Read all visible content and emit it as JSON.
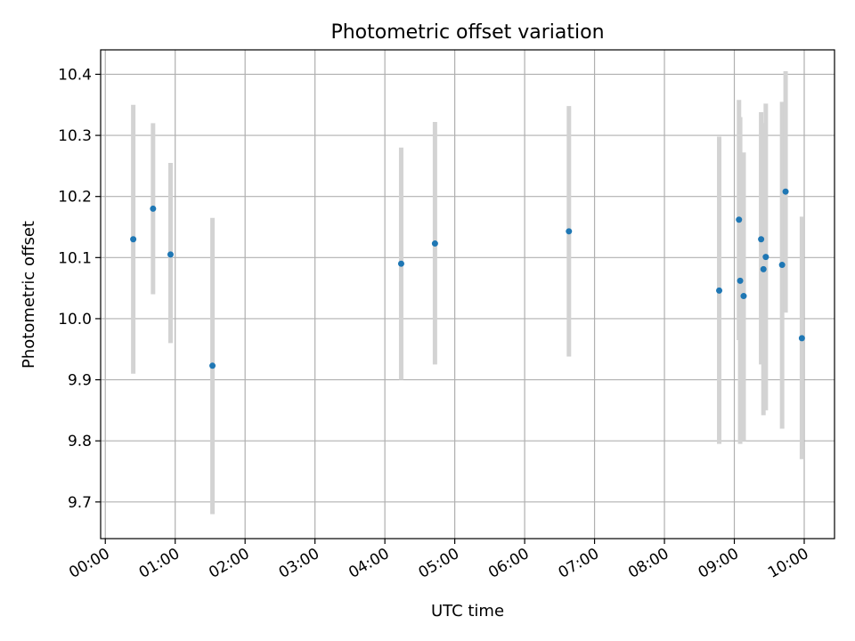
{
  "chart_data": {
    "type": "scatter",
    "title": "Photometric offset variation",
    "xlabel": "UTC time",
    "ylabel": "Photometric offset",
    "x_unit": "UTC",
    "xlim": [
      "23:56",
      "10:26"
    ],
    "ylim": [
      9.64,
      10.44
    ],
    "x_ticks": [
      "00:00",
      "01:00",
      "02:00",
      "03:00",
      "04:00",
      "05:00",
      "06:00",
      "07:00",
      "08:00",
      "09:00",
      "10:00"
    ],
    "y_ticks": [
      9.7,
      9.8,
      9.9,
      10.0,
      10.1,
      10.2,
      10.3,
      10.4
    ],
    "y_tick_labels": [
      "9.7",
      "9.8",
      "9.9",
      "10.0",
      "10.1",
      "10.2",
      "10.3",
      "10.4"
    ],
    "grid": true,
    "colors": {
      "point": "#1f77b4",
      "errorbar": "#d3d3d3",
      "grid": "#b0b0b0"
    },
    "points": [
      {
        "x": "00:24",
        "y": 10.13,
        "y_low": 9.91,
        "y_high": 10.35
      },
      {
        "x": "00:41",
        "y": 10.18,
        "y_low": 10.04,
        "y_high": 10.32
      },
      {
        "x": "00:56",
        "y": 10.105,
        "y_low": 9.96,
        "y_high": 10.255
      },
      {
        "x": "01:32",
        "y": 9.923,
        "y_low": 9.68,
        "y_high": 10.165
      },
      {
        "x": "04:14",
        "y": 10.09,
        "y_low": 9.9,
        "y_high": 10.28
      },
      {
        "x": "04:43",
        "y": 10.123,
        "y_low": 9.925,
        "y_high": 10.322
      },
      {
        "x": "06:38",
        "y": 10.143,
        "y_low": 9.938,
        "y_high": 10.348
      },
      {
        "x": "08:47",
        "y": 10.046,
        "y_low": 9.795,
        "y_high": 10.298
      },
      {
        "x": "09:04",
        "y": 10.162,
        "y_low": 9.965,
        "y_high": 10.358
      },
      {
        "x": "09:05",
        "y": 10.062,
        "y_low": 9.795,
        "y_high": 10.33
      },
      {
        "x": "09:08",
        "y": 10.037,
        "y_low": 9.8,
        "y_high": 10.272
      },
      {
        "x": "09:23",
        "y": 10.13,
        "y_low": 9.925,
        "y_high": 10.338
      },
      {
        "x": "09:25",
        "y": 10.081,
        "y_low": 9.842,
        "y_high": 10.32
      },
      {
        "x": "09:27",
        "y": 10.101,
        "y_low": 9.85,
        "y_high": 10.352
      },
      {
        "x": "09:41",
        "y": 10.088,
        "y_low": 9.82,
        "y_high": 10.355
      },
      {
        "x": "09:44",
        "y": 10.208,
        "y_low": 10.01,
        "y_high": 10.405
      },
      {
        "x": "09:58",
        "y": 9.968,
        "y_low": 9.77,
        "y_high": 10.167
      }
    ]
  }
}
